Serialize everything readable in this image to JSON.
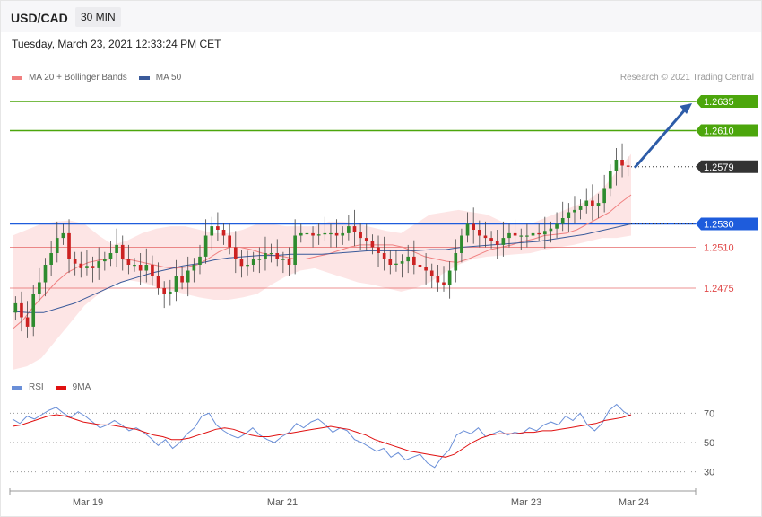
{
  "header": {
    "symbol": "USD/CAD",
    "timeframe": "30 MIN",
    "datetime": "Tuesday, March 23, 2021 12:33:24 PM CET"
  },
  "legend": {
    "ma20": "MA 20 + Bollinger Bands",
    "ma50": "MA 50",
    "rsi": "RSI",
    "ma9": "9MA",
    "credit": "Research © 2021 Trading Central"
  },
  "colors": {
    "ma20": "#f08080",
    "ma50": "#3a5a9a",
    "bands": "#fde0e0",
    "up": "#2e8b2e",
    "down": "#cc2222",
    "resistance": "#4ca60c",
    "pivot": "#1e5cdc",
    "support": "#e04848",
    "current": "#333333",
    "arrow": "#2d5ca8",
    "rsi": "#6a8fd8",
    "rsi_ma": "#e01010"
  },
  "chart_data": {
    "type": "candlestick",
    "instrument": "USD/CAD",
    "timeframe": "30 MIN",
    "x_ticks": [
      "Mar 19",
      "Mar 21",
      "Mar 23",
      "Mar 24"
    ],
    "ylim": [
      1.2405,
      1.2645
    ],
    "levels": [
      {
        "value": 1.2635,
        "label": "1.2635",
        "kind": "resistance"
      },
      {
        "value": 1.261,
        "label": "1.2610",
        "kind": "resistance"
      },
      {
        "value": 1.2579,
        "label": "1.2579",
        "kind": "current"
      },
      {
        "value": 1.253,
        "label": "1.2530",
        "kind": "pivot"
      },
      {
        "value": 1.251,
        "label": "1.2510",
        "kind": "support"
      },
      {
        "value": 1.2475,
        "label": "1.2475",
        "kind": "support"
      }
    ],
    "close_path": [
      1.2462,
      1.245,
      1.2442,
      1.247,
      1.248,
      1.2495,
      1.2505,
      1.2518,
      1.2522,
      1.25,
      1.2496,
      1.2492,
      1.2494,
      1.2492,
      1.2498,
      1.25,
      1.2505,
      1.2512,
      1.25,
      1.2495,
      1.2495,
      1.249,
      1.2495,
      1.2485,
      1.2475,
      1.247,
      1.2472,
      1.2485,
      1.248,
      1.249,
      1.2495,
      1.2502,
      1.252,
      1.2528,
      1.2525,
      1.252,
      1.251,
      1.25,
      1.2494,
      1.2495,
      1.25,
      1.25,
      1.2505,
      1.2505,
      1.25,
      1.25,
      1.2495,
      1.252,
      1.2522,
      1.2522,
      1.252,
      1.2521,
      1.2522,
      1.2522,
      1.252,
      1.2522,
      1.2528,
      1.2523,
      1.2518,
      1.2515,
      1.251,
      1.2505,
      1.25,
      1.2495,
      1.2496,
      1.2498,
      1.2502,
      1.2495,
      1.2493,
      1.249,
      1.2485,
      1.248,
      1.2478,
      1.249,
      1.2505,
      1.252,
      1.253,
      1.2525,
      1.252,
      1.2518,
      1.2515,
      1.2512,
      1.2518,
      1.2522,
      1.252,
      1.252,
      1.252,
      1.2522,
      1.2521,
      1.2524,
      1.2526,
      1.253,
      1.2535,
      1.254,
      1.2542,
      1.2545,
      1.255,
      1.2545,
      1.2548,
      1.256,
      1.2575,
      1.2585,
      1.258,
      1.2579
    ],
    "ma20_path": [
      1.244,
      1.2448,
      1.246,
      1.247,
      1.248,
      1.2488,
      1.2493,
      1.2497,
      1.2499,
      1.25,
      1.25,
      1.2499,
      1.2497,
      1.2495,
      1.2493,
      1.2492,
      1.2493,
      1.2495,
      1.25,
      1.2506,
      1.251,
      1.251,
      1.2508,
      1.2505,
      1.2503,
      1.2502,
      1.25,
      1.25,
      1.2502,
      1.2504,
      1.2507,
      1.251,
      1.2512,
      1.2512,
      1.2512,
      1.2512,
      1.251,
      1.2506,
      1.2502,
      1.25,
      1.2498,
      1.2497,
      1.25,
      1.2504,
      1.2508,
      1.251,
      1.2512,
      1.2515,
      1.2517,
      1.252,
      1.2521,
      1.2522,
      1.2525,
      1.253,
      1.2535,
      1.254,
      1.2548,
      1.2555
    ],
    "ma50_path": [
      1.2455,
      1.2454,
      1.2454,
      1.2458,
      1.2462,
      1.2468,
      1.2474,
      1.248,
      1.2484,
      1.2488,
      1.2491,
      1.2494,
      1.2496,
      1.2499,
      1.2501,
      1.2502,
      1.2503,
      1.2503,
      1.2504,
      1.2504,
      1.2504,
      1.2505,
      1.2506,
      1.2507,
      1.2507,
      1.2507,
      1.2507,
      1.2508,
      1.2508,
      1.251,
      1.2511,
      1.2512,
      1.2513,
      1.2514,
      1.2515,
      1.2517,
      1.2519,
      1.2521,
      1.2524,
      1.2527,
      1.253
    ],
    "band_upper": [
      1.252,
      1.2525,
      1.253,
      1.2532,
      1.2533,
      1.253,
      1.252,
      1.2512,
      1.2516,
      1.2522,
      1.2526,
      1.2528,
      1.2528,
      1.2525,
      1.2522,
      1.2522,
      1.2525,
      1.253,
      1.253,
      1.2528,
      1.2528,
      1.2528,
      1.2532,
      1.2532,
      1.253,
      1.2527,
      1.2524,
      1.2522,
      1.253,
      1.2538,
      1.254,
      1.2542,
      1.254,
      1.2538,
      1.2532,
      1.253,
      1.253,
      1.2535,
      1.254,
      1.2545,
      1.255,
      1.256,
      1.2575,
      1.259
    ],
    "band_lower": [
      1.2405,
      1.2408,
      1.2415,
      1.243,
      1.2445,
      1.246,
      1.247,
      1.2478,
      1.2482,
      1.248,
      1.2476,
      1.2473,
      1.247,
      1.2467,
      1.2465,
      1.2465,
      1.2467,
      1.247,
      1.2478,
      1.2485,
      1.249,
      1.2492,
      1.2488,
      1.2484,
      1.248,
      1.2478,
      1.2475,
      1.2472,
      1.2475,
      1.248,
      1.2488,
      1.2495,
      1.25,
      1.2502,
      1.2503,
      1.2504,
      1.2505,
      1.2508,
      1.251,
      1.2512,
      1.2515,
      1.2518,
      1.2518,
      1.252
    ],
    "rsi": {
      "levels": [
        70,
        50,
        30
      ],
      "ylim": [
        20,
        80
      ],
      "rsi_path": [
        66,
        63,
        68,
        66,
        69,
        72,
        74,
        70,
        67,
        71,
        68,
        64,
        60,
        62,
        65,
        62,
        58,
        60,
        57,
        53,
        48,
        52,
        46,
        50,
        56,
        60,
        68,
        70,
        62,
        58,
        55,
        53,
        56,
        60,
        55,
        52,
        50,
        54,
        57,
        63,
        60,
        64,
        66,
        62,
        57,
        60,
        58,
        52,
        50,
        47,
        44,
        46,
        40,
        43,
        38,
        40,
        42,
        36,
        33,
        40,
        45,
        55,
        58,
        56,
        60,
        54,
        56,
        58,
        55,
        57,
        56,
        60,
        58,
        62,
        64,
        62,
        68,
        65,
        70,
        62,
        58,
        63,
        72,
        76,
        71,
        68
      ],
      "ma9_path": [
        61,
        62,
        64,
        66,
        68,
        69,
        68,
        66,
        64,
        63,
        62,
        62,
        61,
        60,
        59,
        57,
        55,
        54,
        52,
        52,
        53,
        55,
        57,
        59,
        60,
        59,
        57,
        55,
        54,
        54,
        55,
        56,
        57,
        58,
        59,
        60,
        61,
        60,
        59,
        57,
        55,
        52,
        50,
        48,
        46,
        44,
        43,
        42,
        41,
        40,
        42,
        46,
        50,
        53,
        55,
        56,
        56,
        56,
        57,
        57,
        58,
        58,
        59,
        60,
        61,
        62,
        63,
        65,
        66,
        67,
        69
      ]
    }
  }
}
